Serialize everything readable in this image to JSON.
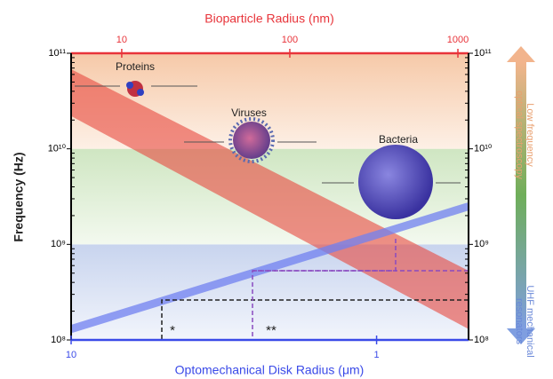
{
  "chart_data": {
    "type": "line",
    "top_xlabel": "Bioparticle Radius (nm)",
    "xlabel": "Optomechanical Disk Radius (μm)",
    "ylabel": "Frequency (Hz)",
    "log": true,
    "x2lim": [
      5,
      1157
    ],
    "x2ticks": [
      10,
      100,
      1000
    ],
    "xlim": [
      10,
      0.5
    ],
    "xticks": [
      10,
      1
    ],
    "ylim": [
      100000000,
      100000000000
    ],
    "yticks": [
      {
        "value": 100000000,
        "label": "10⁸"
      },
      {
        "value": 1000000000,
        "label": "10⁹"
      },
      {
        "value": 10000000000,
        "label": "10¹⁰"
      },
      {
        "value": 100000000000,
        "label": "10¹¹"
      }
    ],
    "series": [
      {
        "color": "#e8473e",
        "axis": "x2",
        "x": [
          5,
          1157
        ],
        "upper": [
          68000000000,
          530000000
        ],
        "lower": [
          22000000000,
          130000000
        ]
      },
      {
        "color": "#7080f0",
        "x": [
          10,
          0.5
        ],
        "values": [
          130000000,
          2500000000
        ]
      }
    ],
    "annotations": [
      "Proteins",
      "Viruses",
      "Bacteria",
      "*",
      "**"
    ],
    "regions": [
      {
        "lines": [
          "Low frequency",
          "optical spectroscopy"
        ],
        "color": "#e9a070"
      },
      {
        "lines": [
          "UHF mechanical",
          "resonators"
        ],
        "color": "#6a88d8"
      }
    ]
  }
}
